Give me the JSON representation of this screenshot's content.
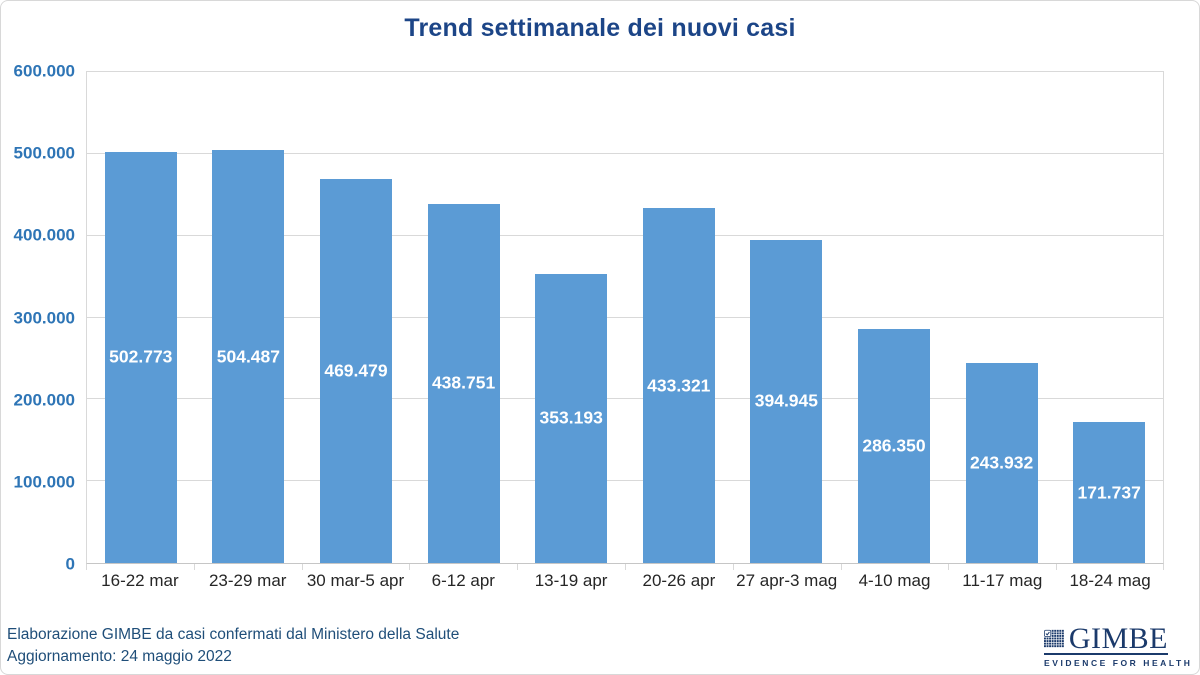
{
  "chart_data": {
    "type": "bar",
    "title": "Trend settimanale dei nuovi casi",
    "categories": [
      "16-22 mar",
      "23-29 mar",
      "30 mar-5 apr",
      "6-12 apr",
      "13-19 apr",
      "20-26 apr",
      "27 apr-3 mag",
      "4-10 mag",
      "11-17 mag",
      "18-24 mag"
    ],
    "values": [
      502773,
      504487,
      469479,
      438751,
      353193,
      433321,
      394945,
      286350,
      243932,
      171737
    ],
    "value_labels": [
      "502.773",
      "504.487",
      "469.479",
      "438.751",
      "353.193",
      "433.321",
      "394.945",
      "286.350",
      "243.932",
      "171.737"
    ],
    "xlabel": "",
    "ylabel": "",
    "ylim": [
      0,
      600000
    ],
    "y_ticks": [
      {
        "value": 0,
        "label": "0"
      },
      {
        "value": 100000,
        "label": "100.000"
      },
      {
        "value": 200000,
        "label": "200.000"
      },
      {
        "value": 300000,
        "label": "300.000"
      },
      {
        "value": 400000,
        "label": "400.000"
      },
      {
        "value": 500000,
        "label": "500.000"
      },
      {
        "value": 600000,
        "label": "600.000"
      }
    ],
    "grid": "horizontal",
    "legend": "none",
    "label_position": "inside-center",
    "bar_gap_ratio": 0.33
  },
  "footer": {
    "line1": "Elaborazione GIMBE da casi confermati dal Ministero della Salute",
    "line2": "Aggiornamento: 24 maggio 2022"
  },
  "logo": {
    "name": "GIMBE",
    "tagline": "EVIDENCE FOR HEALTH",
    "icon": "grid-check-icon"
  },
  "colors": {
    "bar": "#5b9bd5",
    "bar_label": "#ffffff",
    "title": "#1c4587",
    "y_label": "#2e75b6",
    "x_label": "#262626",
    "gridline": "#d9d9d9",
    "axis_line": "#c6c6c6",
    "footer_text": "#1f4e79",
    "logo_navy": "#1b3a6b",
    "border": "#d8d8d8"
  }
}
